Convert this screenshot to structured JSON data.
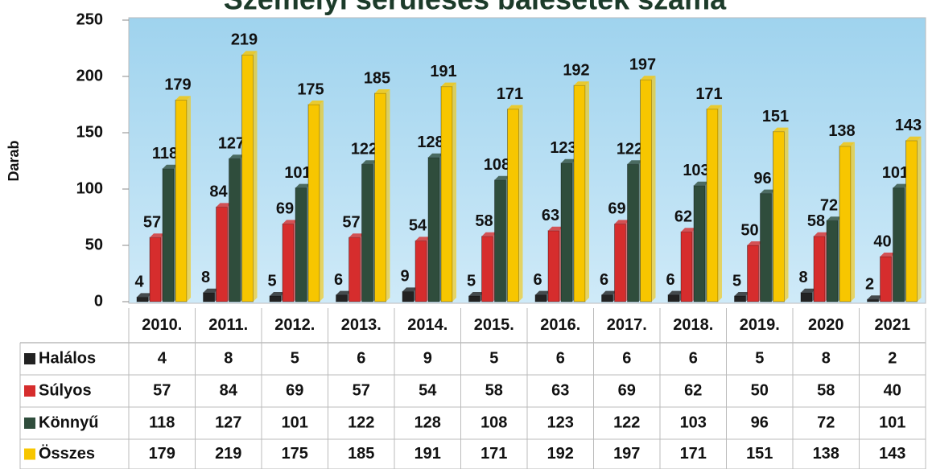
{
  "chart_data": {
    "type": "bar",
    "title": "Személyi sérüléses balesetek száma",
    "ylabel": "Darab",
    "categories": [
      "2010.",
      "2011.",
      "2012.",
      "2013.",
      "2014.",
      "2015.",
      "2016.",
      "2017.",
      "2018.",
      "2019.",
      "2020",
      "2021"
    ],
    "series": [
      {
        "name": "Halálos",
        "color": "#222222",
        "values": [
          4,
          8,
          5,
          6,
          9,
          5,
          6,
          6,
          6,
          5,
          8,
          2
        ]
      },
      {
        "name": "Súlyos",
        "color": "#d62d2d",
        "values": [
          57,
          84,
          69,
          57,
          54,
          58,
          63,
          69,
          62,
          50,
          58,
          40
        ]
      },
      {
        "name": "Könnyű",
        "color": "#2f4d3c",
        "values": [
          118,
          127,
          101,
          122,
          128,
          108,
          123,
          122,
          103,
          96,
          72,
          101
        ]
      },
      {
        "name": "Összes",
        "color": "#f7c600",
        "values": [
          179,
          219,
          175,
          185,
          191,
          171,
          192,
          197,
          171,
          151,
          138,
          143
        ]
      }
    ],
    "ylim": [
      0,
      250
    ],
    "yticks": [
      0,
      50,
      100,
      150,
      200,
      250
    ]
  }
}
